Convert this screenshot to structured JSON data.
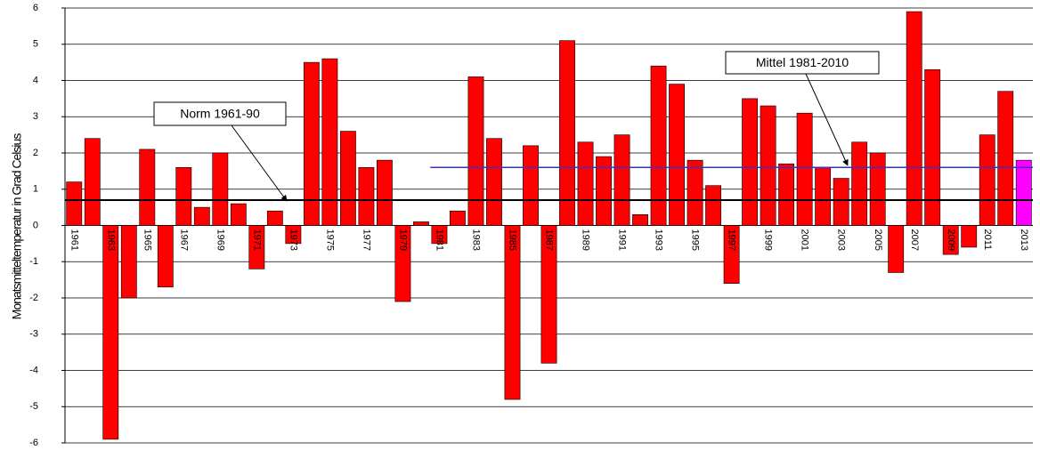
{
  "chart_data": {
    "type": "bar",
    "y_label": "Monatsmitteltemperatur in Grad Celsius",
    "categories": [
      "1961",
      null,
      "1963",
      null,
      "1965",
      null,
      "1967",
      null,
      "1969",
      null,
      "1971",
      null,
      "1973",
      null,
      "1975",
      null,
      "1977",
      null,
      "1979",
      null,
      "1981",
      null,
      "1983",
      null,
      "1985",
      null,
      "1987",
      null,
      "1989",
      null,
      "1991",
      null,
      "1993",
      null,
      "1995",
      null,
      "1997",
      null,
      "1999",
      null,
      "2001",
      null,
      "2003",
      null,
      "2005",
      null,
      "2007",
      null,
      "2009",
      null,
      "2011",
      null,
      "2013"
    ],
    "values": [
      1.2,
      2.4,
      -5.9,
      -2.0,
      2.1,
      -1.7,
      1.6,
      0.5,
      2.0,
      0.6,
      -1.2,
      0.4,
      -0.5,
      4.5,
      4.6,
      2.6,
      1.6,
      1.8,
      -2.1,
      0.1,
      -0.5,
      0.4,
      4.1,
      2.4,
      -4.8,
      2.2,
      -3.8,
      5.1,
      2.3,
      1.9,
      2.5,
      0.3,
      4.4,
      3.9,
      1.8,
      1.1,
      -1.6,
      3.5,
      3.3,
      1.7,
      3.1,
      1.6,
      1.3,
      2.3,
      2.0,
      -1.3,
      5.9,
      4.3,
      -0.8,
      -0.6,
      2.5,
      3.7,
      1.8
    ],
    "colors": [
      "#ff0000",
      "#ff0000",
      "#ff0000",
      "#ff0000",
      "#ff0000",
      "#ff0000",
      "#ff0000",
      "#ff0000",
      "#ff0000",
      "#ff0000",
      "#ff0000",
      "#ff0000",
      "#ff0000",
      "#ff0000",
      "#ff0000",
      "#ff0000",
      "#ff0000",
      "#ff0000",
      "#ff0000",
      "#ff0000",
      "#ff0000",
      "#ff0000",
      "#ff0000",
      "#ff0000",
      "#ff0000",
      "#ff0000",
      "#ff0000",
      "#ff0000",
      "#ff0000",
      "#ff0000",
      "#ff0000",
      "#ff0000",
      "#ff0000",
      "#ff0000",
      "#ff0000",
      "#ff0000",
      "#ff0000",
      "#ff0000",
      "#ff0000",
      "#ff0000",
      "#ff0000",
      "#ff0000",
      "#ff0000",
      "#ff0000",
      "#ff0000",
      "#ff0000",
      "#ff0000",
      "#ff0000",
      "#ff0000",
      "#ff0000",
      "#ff0000",
      "#ff0000",
      "#ff00ff"
    ],
    "ylim": [
      -6,
      6
    ],
    "yticks": [
      -6,
      -5,
      -4,
      -3,
      -2,
      -1,
      0,
      1,
      2,
      3,
      4,
      5,
      6
    ],
    "grid": true,
    "reference_lines": [
      {
        "label": "Norm 1961-90",
        "value": 0.7,
        "color": "#000000",
        "x_range": [
          "1961",
          "2013"
        ]
      },
      {
        "label": "Mittel 1981-2010",
        "value": 1.6,
        "color": "#3333cc",
        "x_range": [
          "1981",
          "2013"
        ]
      }
    ]
  }
}
